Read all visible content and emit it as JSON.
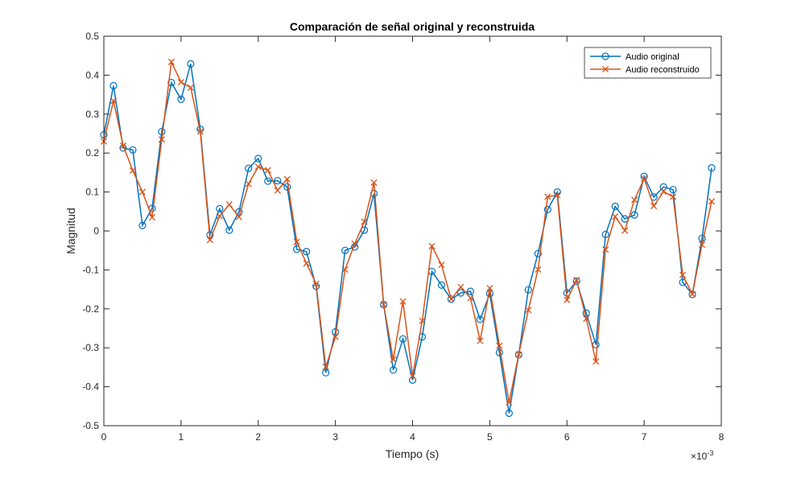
{
  "chart_data": {
    "type": "line",
    "title": "Comparación de señal original y reconstruida",
    "xlabel": "Tiempo (s)",
    "ylabel": "Magnitud",
    "x_exponent_label": "×10",
    "x_exponent": "-3",
    "xlim": [
      0,
      8
    ],
    "ylim": [
      -0.5,
      0.5
    ],
    "x_ticks": [
      "0",
      "1",
      "2",
      "3",
      "4",
      "5",
      "6",
      "7",
      "8"
    ],
    "y_ticks": [
      "-0.5",
      "-0.4",
      "-0.3",
      "-0.2",
      "-0.1",
      "0",
      "0.1",
      "0.2",
      "0.3",
      "0.4",
      "0.5"
    ],
    "grid": false,
    "legend_position": "top-right",
    "x_step": 0.125,
    "series": [
      {
        "name": "Audio original",
        "color": "#0072BD",
        "marker": "circle",
        "values": [
          0.247,
          0.373,
          0.213,
          0.208,
          0.014,
          0.058,
          0.255,
          0.381,
          0.338,
          0.429,
          0.261,
          -0.01,
          0.057,
          0.002,
          0.049,
          0.161,
          0.186,
          0.128,
          0.129,
          0.113,
          -0.047,
          -0.053,
          -0.142,
          -0.364,
          -0.259,
          -0.05,
          -0.041,
          0.002,
          0.096,
          -0.189,
          -0.357,
          -0.277,
          -0.383,
          -0.272,
          -0.104,
          -0.139,
          -0.175,
          -0.159,
          -0.155,
          -0.227,
          -0.161,
          -0.312,
          -0.468,
          -0.318,
          -0.151,
          -0.058,
          0.055,
          0.1,
          -0.159,
          -0.129,
          -0.211,
          -0.292,
          -0.009,
          0.063,
          0.031,
          0.041,
          0.14,
          0.087,
          0.113,
          0.106,
          -0.132,
          -0.163,
          -0.019,
          0.162
        ]
      },
      {
        "name": "Audio reconstruido",
        "color": "#D95319",
        "marker": "x",
        "values": [
          0.23,
          0.334,
          0.219,
          0.155,
          0.1,
          0.035,
          0.235,
          0.434,
          0.382,
          0.368,
          0.255,
          -0.023,
          0.038,
          0.068,
          0.036,
          0.121,
          0.165,
          0.156,
          0.104,
          0.133,
          -0.028,
          -0.083,
          -0.136,
          -0.349,
          -0.272,
          -0.099,
          -0.033,
          0.024,
          0.124,
          -0.189,
          -0.33,
          -0.181,
          -0.372,
          -0.231,
          -0.039,
          -0.087,
          -0.175,
          -0.144,
          -0.172,
          -0.282,
          -0.147,
          -0.295,
          -0.44,
          -0.317,
          -0.203,
          -0.099,
          0.088,
          0.092,
          -0.177,
          -0.126,
          -0.225,
          -0.335,
          -0.048,
          0.037,
          0.001,
          0.08,
          0.134,
          0.064,
          0.101,
          0.088,
          -0.113,
          -0.162,
          -0.035,
          0.076
        ]
      }
    ]
  }
}
